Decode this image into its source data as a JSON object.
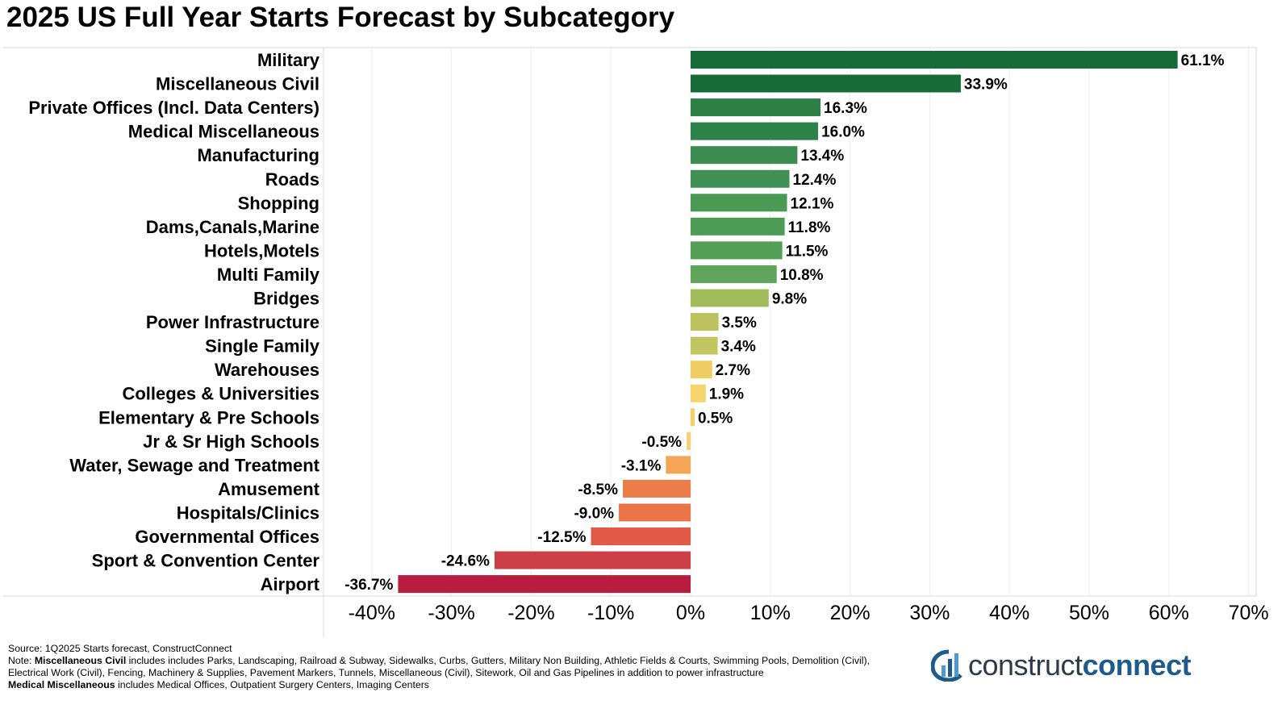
{
  "chart_data": {
    "type": "bar",
    "orientation": "horizontal",
    "title": "2025 US Full Year Starts Forecast by Subcategory",
    "categories": [
      "Military",
      "Miscellaneous Civil",
      "Private Offices (Incl. Data Centers)",
      "Medical Miscellaneous",
      "Manufacturing",
      "Roads",
      "Shopping",
      "Dams,Canals,Marine",
      "Hotels,Motels",
      "Multi Family",
      "Bridges",
      "Power Infrastructure",
      "Single Family",
      "Warehouses",
      "Colleges & Universities",
      "Elementary & Pre Schools",
      "Jr & Sr High Schools",
      "Water, Sewage and Treatment",
      "Amusement",
      "Hospitals/Clinics",
      "Governmental Offices",
      "Sport & Convention Center",
      "Airport"
    ],
    "values": [
      61.1,
      33.9,
      16.3,
      16.0,
      13.4,
      12.4,
      12.1,
      11.8,
      11.5,
      10.8,
      9.8,
      3.5,
      3.4,
      2.7,
      1.9,
      0.5,
      -0.5,
      -3.1,
      -8.5,
      -9.0,
      -12.5,
      -24.6,
      -36.7
    ],
    "labels": [
      "61.1%",
      "33.9%",
      "16.3%",
      "16.0%",
      "13.4%",
      "12.4%",
      "12.1%",
      "11.8%",
      "11.5%",
      "10.8%",
      "9.8%",
      "3.5%",
      "3.4%",
      "2.7%",
      "1.9%",
      "0.5%",
      "-0.5%",
      "-3.1%",
      "-8.5%",
      "-9.0%",
      "-12.5%",
      "-24.6%",
      "-36.7%"
    ],
    "colors": [
      "#176b37",
      "#176b37",
      "#2d7f45",
      "#2e8149",
      "#3c8c4f",
      "#3f9052",
      "#4a9a56",
      "#4e9b56",
      "#539f57",
      "#5ea55a",
      "#a3bc5b",
      "#bcc35e",
      "#c2c660",
      "#efcd63",
      "#f5d56b",
      "#f2cf6a",
      "#f5d070",
      "#f4a555",
      "#ec7c48",
      "#ea7647",
      "#e05a47",
      "#cd3f46",
      "#b81c3e"
    ],
    "xlim": [
      -46,
      71
    ],
    "xticks": [
      -40,
      -30,
      -20,
      -10,
      0,
      10,
      20,
      30,
      40,
      50,
      60,
      70
    ],
    "xtick_labels": [
      "-40%",
      "-30%",
      "-20%",
      "-10%",
      "0%",
      "10%",
      "20%",
      "30%",
      "40%",
      "50%",
      "60%",
      "70%"
    ],
    "xlabel": "",
    "ylabel": "",
    "grid": "vertical"
  },
  "footnotes": {
    "source": "Source: 1Q2025 Starts forecast, ConstructConnect",
    "note_prefix": "Note: ",
    "misc_civil_term": "Miscellaneous Civil",
    "misc_civil_text": " includes includes Parks, Landscaping, Railroad & Subway, Sidewalks, Curbs, Gutters, Military Non Building, Athletic Fields & Courts, Swimming Pools, Demolition (Civil),",
    "misc_civil_text2": "Electrical Work (Civil), Fencing, Machinery & Supplies, Pavement Markers, Tunnels, Miscellaneous (Civil), Sitework, Oil and Gas Pipelines in addition to power infrastructure",
    "medical_term": "Medical Miscellaneous",
    "medical_text": " includes Medical Offices, Outpatient Surgery Centers, Imaging Centers"
  },
  "logo": {
    "text_light": "construct",
    "text_bold": "connect"
  }
}
